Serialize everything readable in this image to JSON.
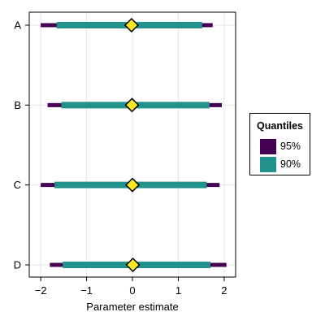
{
  "chart_data": {
    "type": "forest",
    "categories": [
      "A",
      "B",
      "C",
      "D"
    ],
    "series": [
      {
        "name": "95%",
        "color": "#440154",
        "low": [
          -2.0,
          -1.85,
          -2.0,
          -1.8
        ],
        "high": [
          1.75,
          1.95,
          1.9,
          2.05
        ]
      },
      {
        "name": "90%",
        "color": "#21918c",
        "low": [
          -1.65,
          -1.55,
          -1.7,
          -1.52
        ],
        "high": [
          1.52,
          1.68,
          1.62,
          1.7
        ]
      }
    ],
    "point_estimates": [
      -0.02,
      -0.01,
      0.0,
      0.01
    ],
    "point_color": "#fde725",
    "xlabel": "Parameter estimate",
    "xlim": [
      -2.25,
      2.25
    ],
    "xticks": [
      -2,
      -1,
      0,
      1,
      2
    ],
    "xtick_labels": [
      "−2",
      "−1",
      "0",
      "1",
      "2"
    ],
    "grid": true,
    "legend": {
      "title": "Quantiles",
      "position": "right"
    }
  }
}
